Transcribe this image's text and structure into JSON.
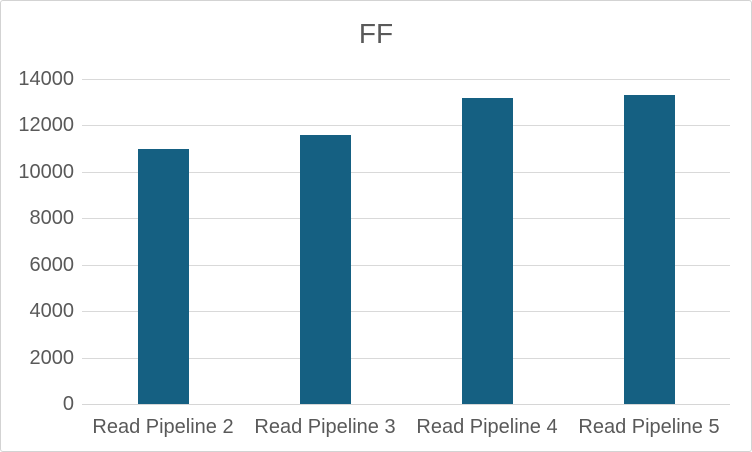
{
  "chart_data": {
    "type": "bar",
    "title": "FF",
    "categories": [
      "Read Pipeline 2",
      "Read Pipeline 3",
      "Read Pipeline 4",
      "Read Pipeline 5"
    ],
    "values": [
      11000,
      11600,
      13200,
      13300
    ],
    "xlabel": "",
    "ylabel": "",
    "ylim": [
      0,
      14000
    ],
    "ytick_interval": 2000,
    "ytick_labels": [
      "0",
      "2000",
      "4000",
      "6000",
      "8000",
      "10000",
      "12000",
      "14000"
    ],
    "grid": true,
    "legend": "none",
    "colors": {
      "bar": "#156082",
      "title_text": "#595959",
      "axis_text": "#595959",
      "gridline": "#d9d9d9",
      "frame_border": "#d3d3d3",
      "background": "#ffffff"
    }
  }
}
